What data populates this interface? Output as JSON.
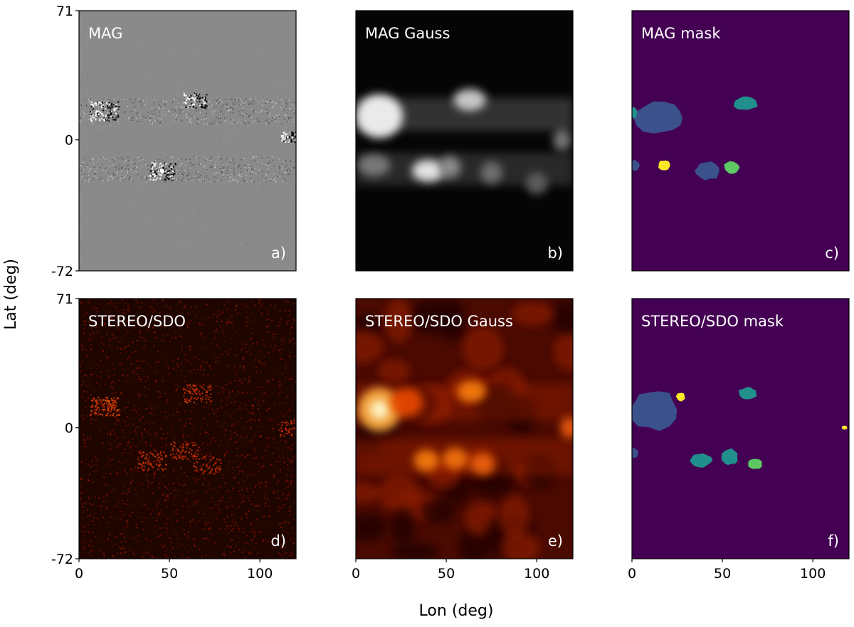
{
  "figure": {
    "ylabel": "Lat (deg)",
    "xlabel": "Lon (deg)"
  },
  "colors": {
    "mag_background": "#8a8a8a",
    "gauss_background": "#050505",
    "heat_background": "#1e0500",
    "mask_background": "#440154",
    "viridis_blue": "#3b518b",
    "viridis_teal": "#21908d",
    "viridis_green": "#5ec962",
    "viridis_yellow": "#fde725",
    "panel_label": "#ffffff"
  },
  "chart_data": [
    {
      "type": "heatmap",
      "panel": "a)",
      "title": "MAG",
      "style": "magnetogram",
      "xlim": [
        0,
        120
      ],
      "ylim": [
        -72,
        71
      ],
      "xticks": [],
      "yticks": [
        71,
        0,
        -72
      ],
      "features": [
        {
          "lon": 14,
          "lat": 16,
          "amp": 0.9,
          "kind": "mixed"
        },
        {
          "lon": 64,
          "lat": 22,
          "amp": 0.7,
          "kind": "mixed"
        },
        {
          "lon": 46,
          "lat": -17,
          "amp": 0.8,
          "kind": "mixed"
        },
        {
          "lon": 116,
          "lat": 2,
          "amp": 0.5,
          "kind": "mixed"
        }
      ]
    },
    {
      "type": "heatmap",
      "panel": "b)",
      "title": "MAG Gauss",
      "style": "gray-gauss",
      "xlim": [
        0,
        120
      ],
      "ylim": [
        -72,
        71
      ],
      "xticks": [],
      "yticks": [],
      "blobs": [
        {
          "lon": 13,
          "lat": 13,
          "w": 13,
          "h": 12,
          "amp": 1.0
        },
        {
          "lon": 63,
          "lat": 22,
          "w": 9,
          "h": 6,
          "amp": 0.8
        },
        {
          "lon": 40,
          "lat": -17,
          "w": 9,
          "h": 6,
          "amp": 0.95
        },
        {
          "lon": 52,
          "lat": -15,
          "w": 6,
          "h": 6,
          "amp": 0.45
        },
        {
          "lon": 10,
          "lat": -14,
          "w": 9,
          "h": 6,
          "amp": 0.35
        },
        {
          "lon": 75,
          "lat": -18,
          "w": 6,
          "h": 6,
          "amp": 0.3
        },
        {
          "lon": 114,
          "lat": 0,
          "w": 5,
          "h": 6,
          "amp": 0.35
        },
        {
          "lon": 100,
          "lat": -24,
          "w": 6,
          "h": 6,
          "amp": 0.2
        }
      ]
    },
    {
      "type": "heatmap",
      "panel": "c)",
      "title": "MAG mask",
      "style": "mask",
      "xlim": [
        0,
        120
      ],
      "ylim": [
        -72,
        71
      ],
      "xticks": [],
      "yticks": [],
      "regions": [
        {
          "lon": 15,
          "lat": 12,
          "w": 13,
          "h": 9,
          "color": "#3b518b"
        },
        {
          "lon": 1,
          "lat": 15,
          "w": 2,
          "h": 3,
          "color": "#21908d"
        },
        {
          "lon": 1,
          "lat": -14,
          "w": 3,
          "h": 3,
          "color": "#3b518b"
        },
        {
          "lon": 63,
          "lat": 20,
          "w": 7,
          "h": 4,
          "color": "#21908d"
        },
        {
          "lon": 18,
          "lat": -14,
          "w": 3.5,
          "h": 3,
          "color": "#fde725"
        },
        {
          "lon": 42,
          "lat": -17,
          "w": 7,
          "h": 5,
          "color": "#3b518b"
        },
        {
          "lon": 55,
          "lat": -15,
          "w": 4.5,
          "h": 3.5,
          "color": "#5ec962"
        }
      ]
    },
    {
      "type": "heatmap",
      "panel": "d)",
      "title": "STEREO/SDO",
      "style": "heat-noise",
      "xlim": [
        0,
        120
      ],
      "ylim": [
        -72,
        71
      ],
      "xticks": [
        0,
        50,
        100
      ],
      "yticks": [
        71,
        0,
        -72
      ],
      "features": [
        {
          "lon": 14,
          "lat": 12,
          "amp": 0.8
        },
        {
          "lon": 65,
          "lat": 19,
          "amp": 0.55
        },
        {
          "lon": 40,
          "lat": -18,
          "amp": 0.5
        },
        {
          "lon": 58,
          "lat": -12,
          "amp": 0.45
        },
        {
          "lon": 70,
          "lat": -20,
          "amp": 0.4
        },
        {
          "lon": 118,
          "lat": 0,
          "amp": 0.4
        }
      ]
    },
    {
      "type": "heatmap",
      "panel": "e)",
      "title": "STEREO/SDO Gauss",
      "style": "heat-gauss",
      "xlim": [
        0,
        120
      ],
      "ylim": [
        -72,
        71
      ],
      "xticks": [
        0,
        50,
        100
      ],
      "yticks": [],
      "blobs": [
        {
          "lon": 13,
          "lat": 10,
          "w": 12,
          "h": 12,
          "amp": 1.0
        },
        {
          "lon": 64,
          "lat": 20,
          "w": 8,
          "h": 6,
          "amp": 0.75
        },
        {
          "lon": 39,
          "lat": -18,
          "w": 7,
          "h": 6,
          "amp": 0.75
        },
        {
          "lon": 55,
          "lat": -17,
          "w": 7,
          "h": 6,
          "amp": 0.7
        },
        {
          "lon": 70,
          "lat": -20,
          "w": 7,
          "h": 6,
          "amp": 0.6
        },
        {
          "lon": 118,
          "lat": 0,
          "w": 5,
          "h": 6,
          "amp": 0.55
        },
        {
          "lon": 28,
          "lat": 14,
          "w": 9,
          "h": 8,
          "amp": 0.45
        }
      ]
    },
    {
      "type": "heatmap",
      "panel": "f)",
      "title": "STEREO/SDO mask",
      "style": "mask",
      "xlim": [
        0,
        120
      ],
      "ylim": [
        -72,
        71
      ],
      "xticks": [
        0,
        50,
        100
      ],
      "yticks": [],
      "regions": [
        {
          "lon": 12,
          "lat": 10,
          "w": 13,
          "h": 11,
          "color": "#3b518b"
        },
        {
          "lon": 27,
          "lat": 17,
          "w": 2.5,
          "h": 2.5,
          "color": "#fde725"
        },
        {
          "lon": 64,
          "lat": 19,
          "w": 5,
          "h": 3.5,
          "color": "#21908d"
        },
        {
          "lon": 1,
          "lat": -14,
          "w": 2.5,
          "h": 3,
          "color": "#3b518b"
        },
        {
          "lon": 38,
          "lat": -18,
          "w": 6,
          "h": 4,
          "color": "#21908d"
        },
        {
          "lon": 54,
          "lat": -16,
          "w": 4.5,
          "h": 4.5,
          "color": "#21908d"
        },
        {
          "lon": 68,
          "lat": -20,
          "w": 4,
          "h": 3,
          "color": "#5ec962"
        },
        {
          "lon": 117.5,
          "lat": 0,
          "w": 1.5,
          "h": 1.2,
          "color": "#fde725"
        }
      ]
    }
  ]
}
